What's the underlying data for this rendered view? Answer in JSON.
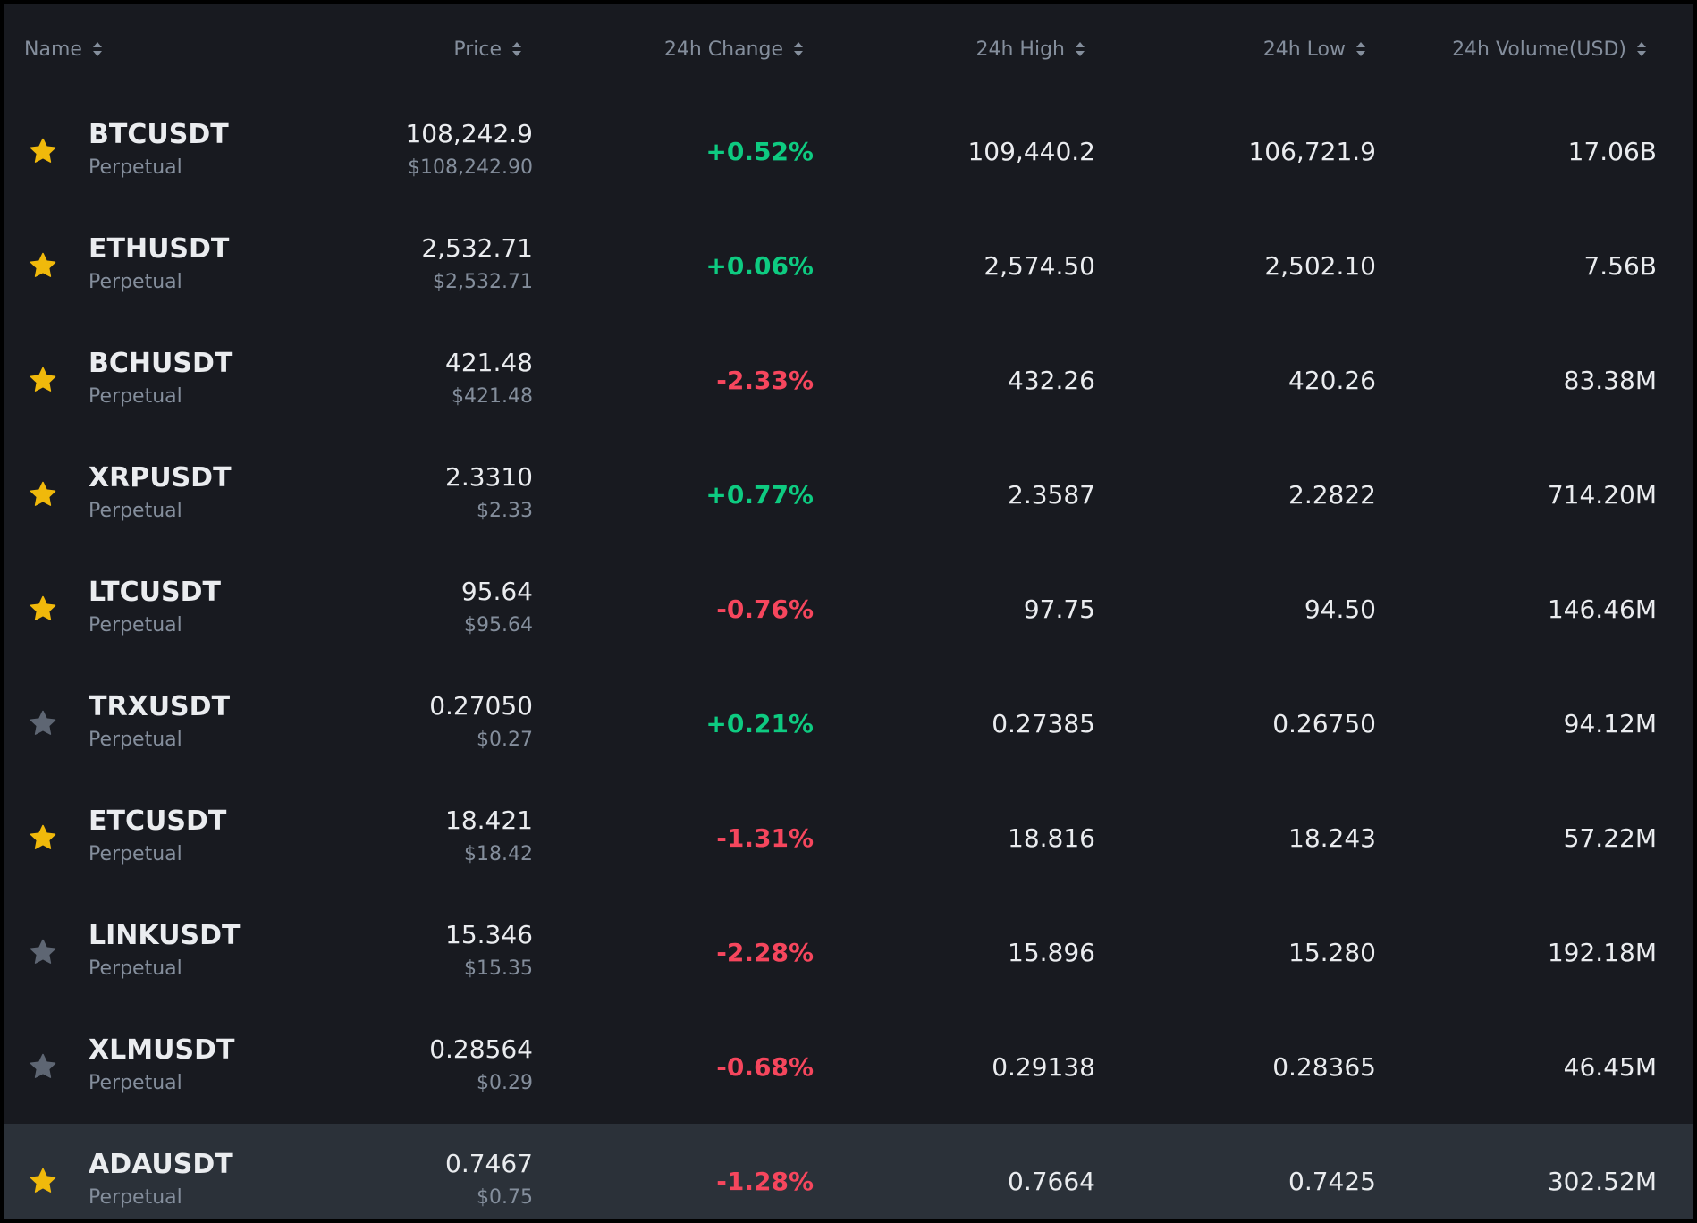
{
  "colors": {
    "background": "#181a20",
    "highlight_row": "#2b3139",
    "up": "#0ecb81",
    "down": "#f6465d",
    "star_active": "#f0b90b",
    "star_inactive": "#5e6673",
    "muted_text": "#848e9c"
  },
  "header": {
    "name": "Name",
    "price": "Price",
    "change": "24h Change",
    "high": "24h High",
    "low": "24h Low",
    "volume": "24h Volume(USD)"
  },
  "rows": [
    {
      "symbol": "BTCUSDT",
      "type": "Perpetual",
      "price": "108,242.9",
      "price_usd": "$108,242.90",
      "change": "+0.52%",
      "direction": "up",
      "high": "109,440.2",
      "low": "106,721.9",
      "volume": "17.06B",
      "favorite": true
    },
    {
      "symbol": "ETHUSDT",
      "type": "Perpetual",
      "price": "2,532.71",
      "price_usd": "$2,532.71",
      "change": "+0.06%",
      "direction": "up",
      "high": "2,574.50",
      "low": "2,502.10",
      "volume": "7.56B",
      "favorite": true
    },
    {
      "symbol": "BCHUSDT",
      "type": "Perpetual",
      "price": "421.48",
      "price_usd": "$421.48",
      "change": "-2.33%",
      "direction": "down",
      "high": "432.26",
      "low": "420.26",
      "volume": "83.38M",
      "favorite": true
    },
    {
      "symbol": "XRPUSDT",
      "type": "Perpetual",
      "price": "2.3310",
      "price_usd": "$2.33",
      "change": "+0.77%",
      "direction": "up",
      "high": "2.3587",
      "low": "2.2822",
      "volume": "714.20M",
      "favorite": true
    },
    {
      "symbol": "LTCUSDT",
      "type": "Perpetual",
      "price": "95.64",
      "price_usd": "$95.64",
      "change": "-0.76%",
      "direction": "down",
      "high": "97.75",
      "low": "94.50",
      "volume": "146.46M",
      "favorite": true
    },
    {
      "symbol": "TRXUSDT",
      "type": "Perpetual",
      "price": "0.27050",
      "price_usd": "$0.27",
      "change": "+0.21%",
      "direction": "up",
      "high": "0.27385",
      "low": "0.26750",
      "volume": "94.12M",
      "favorite": false
    },
    {
      "symbol": "ETCUSDT",
      "type": "Perpetual",
      "price": "18.421",
      "price_usd": "$18.42",
      "change": "-1.31%",
      "direction": "down",
      "high": "18.816",
      "low": "18.243",
      "volume": "57.22M",
      "favorite": true
    },
    {
      "symbol": "LINKUSDT",
      "type": "Perpetual",
      "price": "15.346",
      "price_usd": "$15.35",
      "change": "-2.28%",
      "direction": "down",
      "high": "15.896",
      "low": "15.280",
      "volume": "192.18M",
      "favorite": false
    },
    {
      "symbol": "XLMUSDT",
      "type": "Perpetual",
      "price": "0.28564",
      "price_usd": "$0.29",
      "change": "-0.68%",
      "direction": "down",
      "high": "0.29138",
      "low": "0.28365",
      "volume": "46.45M",
      "favorite": false
    },
    {
      "symbol": "ADAUSDT",
      "type": "Perpetual",
      "price": "0.7467",
      "price_usd": "$0.75",
      "change": "-1.28%",
      "direction": "down",
      "high": "0.7664",
      "low": "0.7425",
      "volume": "302.52M",
      "favorite": true,
      "hovered": true
    }
  ]
}
